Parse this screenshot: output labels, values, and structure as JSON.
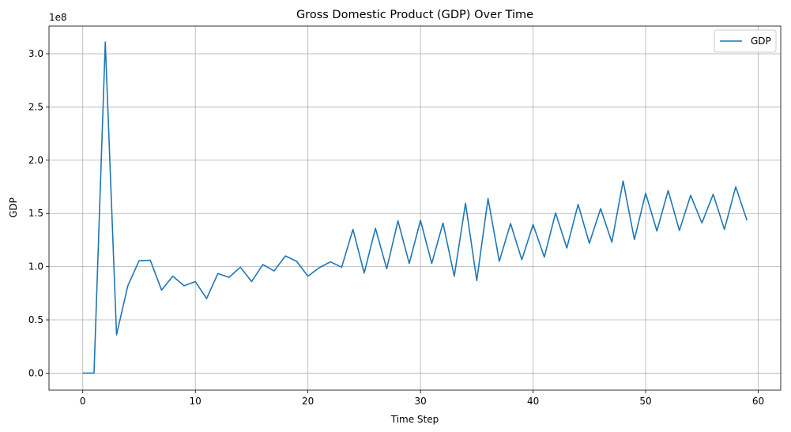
{
  "chart_data": {
    "type": "line",
    "title": "Gross Domestic Product (GDP) Over Time",
    "xlabel": "Time Step",
    "ylabel": "GDP",
    "y_offset_label": "1e8",
    "xlim": [
      -3,
      62
    ],
    "ylim": [
      -0.16,
      3.26
    ],
    "y_unit_multiplier": 100000000,
    "x_ticks": [
      0,
      10,
      20,
      30,
      40,
      50,
      60
    ],
    "x_tick_labels": [
      "0",
      "10",
      "20",
      "30",
      "40",
      "50",
      "60"
    ],
    "y_ticks": [
      0.0,
      0.5,
      1.0,
      1.5,
      2.0,
      2.5,
      3.0
    ],
    "y_tick_labels": [
      "0.0",
      "0.5",
      "1.0",
      "1.5",
      "2.0",
      "2.5",
      "3.0"
    ],
    "grid": true,
    "legend_position": "top-right",
    "series": [
      {
        "name": "GDP",
        "color": "#1f77b4",
        "x": [
          0,
          1,
          2,
          3,
          4,
          5,
          6,
          7,
          8,
          9,
          10,
          11,
          12,
          13,
          14,
          15,
          16,
          17,
          18,
          19,
          20,
          21,
          22,
          23,
          24,
          25,
          26,
          27,
          28,
          29,
          30,
          31,
          32,
          33,
          34,
          35,
          36,
          37,
          38,
          39,
          40,
          41,
          42,
          43,
          44,
          45,
          46,
          47,
          48,
          49,
          50,
          51,
          52,
          53,
          54,
          55,
          56,
          57,
          58,
          59
        ],
        "y": [
          0.0,
          0.0,
          3.11,
          0.36,
          0.82,
          1.055,
          1.06,
          0.78,
          0.91,
          0.82,
          0.86,
          0.7,
          0.935,
          0.9,
          0.995,
          0.86,
          1.02,
          0.96,
          1.1,
          1.05,
          0.91,
          0.99,
          1.045,
          0.995,
          1.35,
          0.94,
          1.36,
          0.98,
          1.43,
          1.03,
          1.435,
          1.03,
          1.41,
          0.91,
          1.595,
          0.87,
          1.64,
          1.05,
          1.405,
          1.065,
          1.395,
          1.09,
          1.505,
          1.175,
          1.585,
          1.22,
          1.545,
          1.23,
          1.805,
          1.255,
          1.69,
          1.335,
          1.715,
          1.34,
          1.67,
          1.41,
          1.68,
          1.35,
          1.75,
          1.435
        ]
      }
    ]
  }
}
